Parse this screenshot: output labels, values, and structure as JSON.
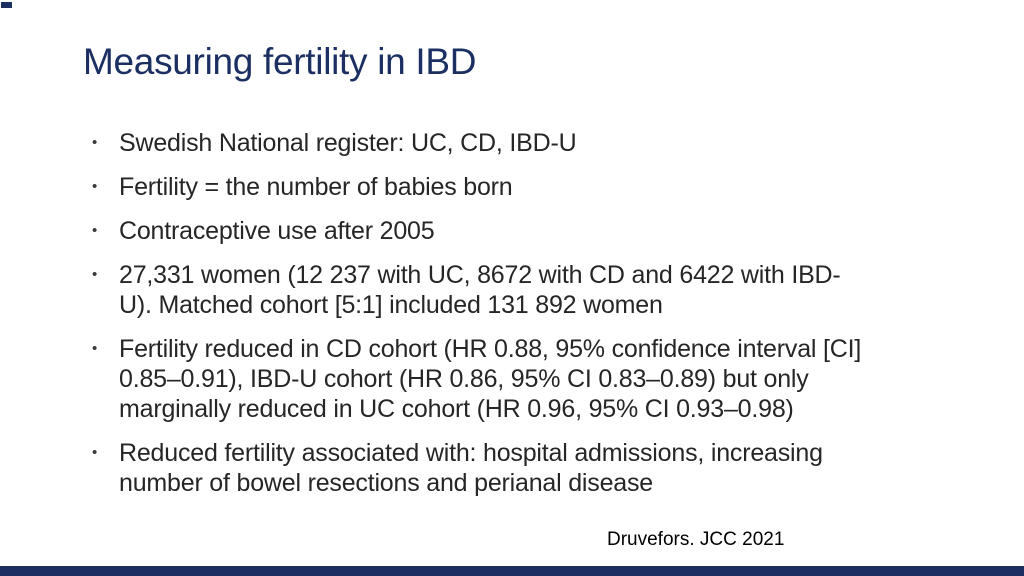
{
  "slide": {
    "title": "Measuring fertility in IBD",
    "bullet_char": "•",
    "bullets": [
      "Swedish National register: UC, CD, IBD-U",
      "Fertility = the number of babies born",
      "Contraceptive use after 2005",
      "27,331 women (12 237 with UC, 8672 with CD and 6422 with IBD-\nU). Matched cohort [5:1] included 131 892 women",
      "Fertility reduced in CD cohort (HR 0.88, 95% confidence interval [CI]\n0.85–0.91), IBD-U cohort (HR 0.86, 95% CI 0.83–0.89) but only\nmarginally reduced in UC cohort (HR 0.96, 95% CI 0.93–0.98)",
      "Reduced fertility associated with: hospital admissions, increasing\nnumber of bowel resections and perianal disease"
    ],
    "citation": "Druvefors. JCC 2021",
    "colors": {
      "title": "#1b2f63",
      "body": "#262626",
      "accent_bar": "#1b2f63",
      "background": "#ffffff"
    }
  }
}
